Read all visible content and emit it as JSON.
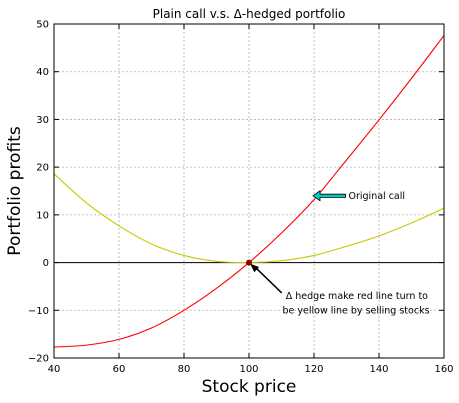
{
  "chart_data": {
    "type": "line",
    "title": "Plain call v.s. Δ-hedged portfolio",
    "xlabel": "Stock price",
    "ylabel": "Portfolio profits",
    "xlim": [
      40,
      160
    ],
    "ylim": [
      -20,
      50
    ],
    "xticks": [
      40,
      60,
      80,
      100,
      120,
      140,
      160
    ],
    "yticks": [
      -20,
      -10,
      0,
      10,
      20,
      30,
      40,
      50
    ],
    "xtick_labels": [
      "40",
      "60",
      "80",
      "100",
      "120",
      "140",
      "160"
    ],
    "ytick_labels": [
      "−20",
      "−10",
      "0",
      "10",
      "20",
      "30",
      "40",
      "50"
    ],
    "grid": true,
    "series": [
      {
        "color": "#ff0000",
        "x": [
          40,
          50,
          60,
          70,
          80,
          90,
          100,
          110,
          120,
          130,
          140,
          150,
          160
        ],
        "values": [
          -17.7,
          -17.3,
          -16.1,
          -13.7,
          -10.0,
          -5.4,
          0.0,
          6.2,
          13.2,
          21.5,
          29.9,
          38.6,
          47.6
        ]
      },
      {
        "color": "#c8c800",
        "x": [
          40,
          50,
          60,
          70,
          80,
          90,
          100,
          110,
          120,
          130,
          140,
          150,
          160
        ],
        "values": [
          18.6,
          12.5,
          7.7,
          3.9,
          1.5,
          0.25,
          0.0,
          0.4,
          1.5,
          3.4,
          5.6,
          8.3,
          11.4
        ]
      }
    ],
    "annotations": [
      {
        "text": "Original call",
        "point": [
          120,
          14
        ],
        "text_at": [
          130,
          14
        ]
      },
      {
        "text": "Δ hedge make red line turn to",
        "point": [
          100,
          0
        ],
        "text_at": [
          111,
          -7
        ]
      },
      {
        "text": "be yellow line by selling stocks",
        "point": [
          100,
          0
        ],
        "text_at": [
          110,
          -10
        ]
      }
    ]
  }
}
